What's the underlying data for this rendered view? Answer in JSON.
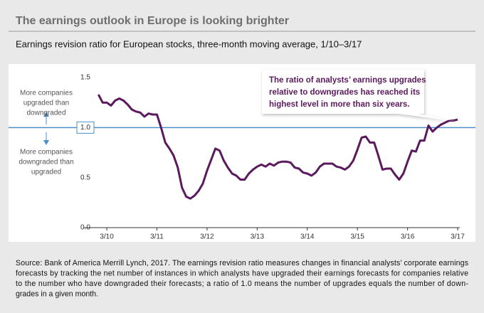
{
  "chart_data": {
    "type": "line",
    "title": "The earnings outlook in Europe is looking brighter",
    "subtitle": "Earnings revision ratio for European stocks, three-month moving average, 1/10–3/17",
    "categories": [
      null,
      null,
      "3/10",
      null,
      null,
      null,
      null,
      null,
      null,
      null,
      null,
      null,
      null,
      null,
      "3/11",
      null,
      null,
      null,
      null,
      null,
      null,
      null,
      null,
      null,
      null,
      null,
      "3/12",
      null,
      null,
      null,
      null,
      null,
      null,
      null,
      null,
      null,
      null,
      null,
      "3/13",
      null,
      null,
      null,
      null,
      null,
      null,
      null,
      null,
      null,
      null,
      null,
      "3/14",
      null,
      null,
      null,
      null,
      null,
      null,
      null,
      null,
      null,
      null,
      null,
      "3/15",
      null,
      null,
      null,
      null,
      null,
      null,
      null,
      null,
      null,
      null,
      null,
      "3/16",
      null,
      null,
      null,
      null,
      null,
      null,
      null,
      null,
      null,
      null,
      null,
      "3/17"
    ],
    "series": [
      {
        "color": "#5b1a5e",
        "values": [
          1.33,
          1.25,
          1.25,
          1.22,
          1.27,
          1.29,
          1.27,
          1.23,
          1.18,
          1.16,
          1.15,
          1.11,
          1.14,
          1.13,
          1.13,
          1.0,
          0.85,
          0.79,
          0.72,
          0.6,
          0.4,
          0.31,
          0.29,
          0.32,
          0.37,
          0.44,
          0.57,
          0.68,
          0.79,
          0.77,
          0.67,
          0.6,
          0.54,
          0.52,
          0.48,
          0.48,
          0.54,
          0.58,
          0.61,
          0.63,
          0.61,
          0.64,
          0.62,
          0.65,
          0.66,
          0.66,
          0.65,
          0.6,
          0.59,
          0.55,
          0.54,
          0.52,
          0.55,
          0.61,
          0.64,
          0.64,
          0.64,
          0.61,
          0.6,
          0.58,
          0.61,
          0.67,
          0.78,
          0.9,
          0.91,
          0.85,
          0.85,
          0.72,
          0.58,
          0.59,
          0.59,
          0.53,
          0.48,
          0.54,
          0.66,
          0.77,
          0.76,
          0.87,
          0.87,
          1.02,
          0.96,
          1.0,
          1.03,
          1.05,
          1.07,
          1.07,
          1.08
        ]
      }
    ],
    "ylim": [
      0,
      1.5
    ],
    "yticks": [
      {
        "value": 0,
        "label": "0.0"
      },
      {
        "value": 0.5,
        "label": "0.5"
      },
      {
        "value": 1,
        "label": "1.0"
      },
      {
        "value": 1.5,
        "label": "1.5"
      }
    ],
    "reference_line": {
      "value": 1,
      "color": "#4a8fc7"
    },
    "annotation_up": [
      "More companies",
      "upgraded than",
      "downgraded"
    ],
    "annotation_down": [
      "More companies",
      "downgraded than",
      "upgraded"
    ],
    "callout": [
      "The ratio of analysts’ earnings upgrades",
      "relative to downgrades has reached its",
      "highest level in more than six years."
    ],
    "source": [
      "Source: Bank of America Merrill Lynch, 2017. The earnings revision ratio measures changes in financial analysts’ corporate earnings",
      "forecasts by tracking the net number of instances in which analysts have upgraded their earnings forecasts for companies relative",
      "to the number who have downgraded their forecasts; a ratio of 1.0 means the number of upgrades equals the number of down-",
      "grades in a given month."
    ]
  }
}
